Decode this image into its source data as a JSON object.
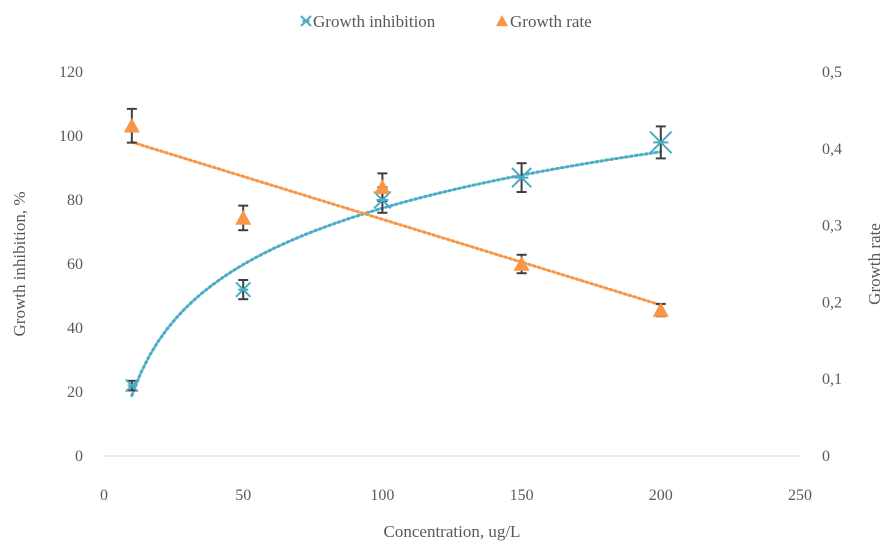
{
  "chart_data": {
    "type": "scatter",
    "title": "",
    "xlabel": "Concentration, ug/L",
    "ylabel": "Growth inhibition, %",
    "y2label": "Growth rate",
    "xlim": [
      0,
      250
    ],
    "ylim": [
      0,
      120
    ],
    "y2lim": [
      0,
      0.5
    ],
    "x_ticks": [
      "0",
      "50",
      "100",
      "150",
      "200",
      "250"
    ],
    "y_ticks": [
      "0",
      "20",
      "40",
      "60",
      "80",
      "100",
      "120"
    ],
    "y2_ticks": [
      "0",
      "0,1",
      "0,2",
      "0,3",
      "0,4",
      "0,5"
    ],
    "grid": false,
    "legend_position": "top",
    "series": [
      {
        "name": "Growth inhibition",
        "axis": "left",
        "marker": "asterisk",
        "color": "#4BACC6",
        "x": [
          10,
          50,
          100,
          150,
          200
        ],
        "y": [
          22,
          52,
          80,
          87,
          98
        ],
        "error": [
          1.5,
          3,
          4,
          4.5,
          5
        ],
        "trendline": "logarithmic"
      },
      {
        "name": "Growth rate",
        "axis": "right",
        "marker": "triangle",
        "color": "#F79646",
        "x": [
          10,
          50,
          100,
          150,
          200
        ],
        "y": [
          0.43,
          0.31,
          0.35,
          0.25,
          0.19
        ],
        "error": [
          0.022,
          0.016,
          0.018,
          0.012,
          0.008
        ],
        "trendline": "linear"
      }
    ]
  }
}
